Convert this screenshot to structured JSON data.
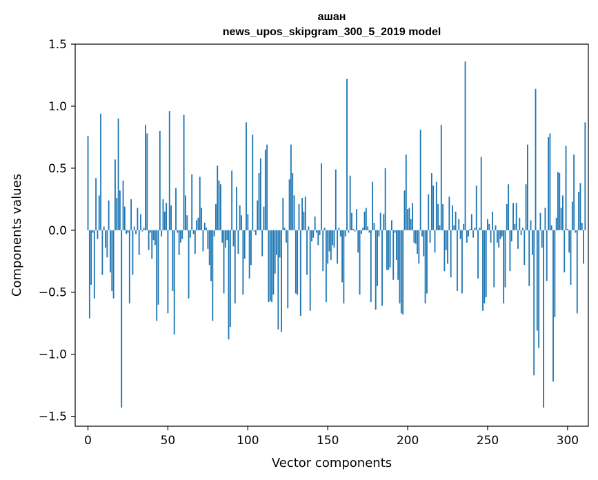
{
  "chart_data": {
    "type": "bar",
    "title": "ашан",
    "subtitle": "news_upos_skipgram_300_5_2019 model",
    "xlabel": "Vector components",
    "ylabel": "Components values",
    "xlim": [
      -8,
      313
    ],
    "ylim": [
      -1.58,
      1.5
    ],
    "x_ticks": [
      0,
      50,
      100,
      150,
      200,
      250,
      300
    ],
    "x_tick_labels": [
      "0",
      "50",
      "100",
      "150",
      "200",
      "250",
      "300"
    ],
    "y_ticks": [
      1.5,
      1.0,
      0.5,
      0.0,
      -0.5,
      -1.0,
      -1.5
    ],
    "y_tick_labels": [
      "1.5",
      "1.0",
      "0.5",
      "0.0",
      "−0.5",
      "−1.0",
      "−1.5"
    ],
    "bar_color": "#1f77b4",
    "grid": false,
    "values": [
      0.76,
      -0.71,
      -0.44,
      -0.02,
      -0.55,
      0.42,
      -0.07,
      0.28,
      0.94,
      -0.36,
      0.03,
      -0.14,
      -0.22,
      0.24,
      -0.34,
      -0.49,
      -0.55,
      0.57,
      0.26,
      0.9,
      0.32,
      -1.43,
      0.4,
      0.19,
      -0.03,
      -0.02,
      -0.59,
      0.25,
      -0.36,
      0.03,
      -0.03,
      0.18,
      -0.2,
      0.13,
      -0.01,
      0.02,
      0.85,
      0.78,
      -0.16,
      -0.02,
      -0.23,
      -0.08,
      -0.12,
      -0.73,
      -0.6,
      0.8,
      -0.05,
      0.25,
      0.15,
      0.22,
      -0.67,
      0.96,
      0.2,
      -0.49,
      -0.84,
      0.34,
      -0.02,
      -0.2,
      -0.1,
      -0.07,
      0.93,
      0.28,
      0.12,
      -0.55,
      -0.06,
      0.45,
      -0.03,
      -0.19,
      0.08,
      0.1,
      0.43,
      0.18,
      -0.17,
      0.06,
      0.02,
      -0.15,
      -0.28,
      -0.41,
      -0.73,
      -0.05,
      0.21,
      0.52,
      0.4,
      0.37,
      -0.1,
      -0.51,
      -0.14,
      -0.08,
      -0.88,
      -0.78,
      0.48,
      -0.13,
      -0.59,
      0.35,
      -0.19,
      0.2,
      0.12,
      -0.52,
      -0.23,
      0.87,
      0.13,
      -0.39,
      -0.28,
      0.77,
      -0.01,
      -0.04,
      0.24,
      0.46,
      0.58,
      -0.21,
      0.19,
      0.65,
      0.69,
      -0.58,
      -0.57,
      -0.58,
      -0.52,
      -0.35,
      -0.2,
      -0.8,
      -0.22,
      -0.82,
      0.26,
      0.02,
      -0.1,
      -0.63,
      0.41,
      0.69,
      0.46,
      0.28,
      -0.51,
      -0.52,
      0.21,
      -0.69,
      0.26,
      0.15,
      0.27,
      -0.36,
      0.03,
      -0.65,
      -0.09,
      -0.06,
      0.11,
      -0.02,
      -0.12,
      -0.04,
      0.54,
      -0.33,
      0.02,
      -0.58,
      -0.27,
      -0.17,
      -0.24,
      -0.12,
      -0.14,
      0.49,
      -0.27,
      0.02,
      -0.05,
      -0.42,
      -0.59,
      -0.05,
      1.22,
      -0.02,
      0.44,
      0.14,
      0.01,
      -0.01,
      0.17,
      -0.18,
      -0.52,
      -0.03,
      0.02,
      0.15,
      0.18,
      0.03,
      -0.02,
      -0.58,
      0.39,
      0.06,
      -0.64,
      -0.45,
      -0.05,
      0.14,
      -0.61,
      0.13,
      0.5,
      -0.32,
      -0.32,
      -0.3,
      0.08,
      -0.4,
      -0.02,
      -0.24,
      -0.4,
      -0.59,
      -0.67,
      -0.68,
      0.32,
      0.61,
      0.17,
      0.18,
      0.09,
      0.22,
      -0.1,
      -0.11,
      -0.19,
      -0.27,
      0.81,
      -0.05,
      -0.21,
      -0.59,
      -0.51,
      0.29,
      -0.1,
      0.46,
      0.36,
      -0.18,
      0.39,
      0.21,
      0.04,
      0.85,
      0.21,
      -0.33,
      -0.16,
      -0.27,
      0.27,
      -0.38,
      0.2,
      0.04,
      0.15,
      -0.49,
      0.09,
      -0.07,
      -0.51,
      0.05,
      1.36,
      -0.1,
      -0.05,
      0.01,
      0.13,
      -0.06,
      0.02,
      0.36,
      -0.39,
      0.02,
      0.59,
      -0.65,
      -0.59,
      -0.54,
      0.09,
      0.05,
      -0.1,
      0.15,
      -0.46,
      0.04,
      -0.1,
      -0.14,
      -0.07,
      -0.05,
      -0.59,
      -0.46,
      0.21,
      0.37,
      -0.33,
      -0.09,
      0.22,
      0.05,
      0.22,
      -0.15,
      0.1,
      -0.04,
      0.02,
      -0.28,
      0.37,
      0.69,
      -0.45,
      0.08,
      -0.2,
      -1.17,
      1.14,
      -0.81,
      -0.95,
      0.14,
      -0.14,
      -1.43,
      0.18,
      -0.41,
      0.75,
      0.78,
      0.04,
      -1.22,
      -0.7,
      0.1,
      0.47,
      0.46,
      0.18,
      0.28,
      -0.34,
      0.68,
      0.01,
      -0.18,
      -0.44,
      0.23,
      0.61,
      -0.02,
      -0.67,
      0.31,
      0.38,
      0.06,
      -0.27,
      0.87
    ]
  }
}
